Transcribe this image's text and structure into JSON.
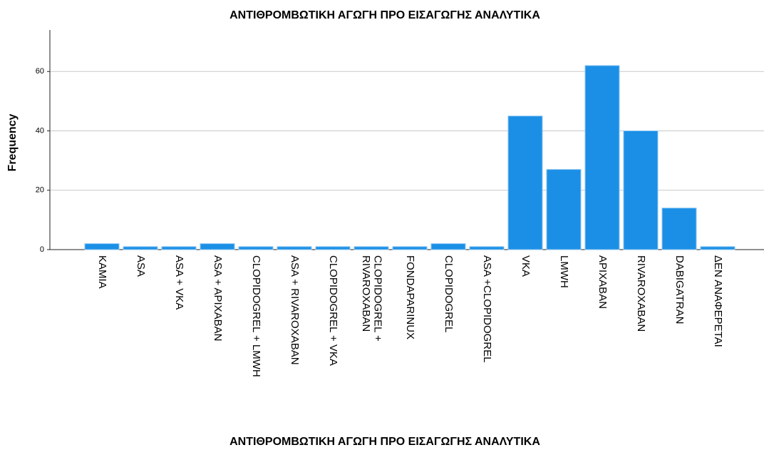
{
  "chart_data": {
    "type": "bar",
    "title": "ΑΝΤΙΘΡΟΜΒΩΤΙΚΗ ΑΓΩΓΗ ΠΡΟ ΕΙΣΑΓΩΓΗΣ ΑΝΑΛΥΤΙΚΑ",
    "x_label": "ΑΝΤΙΘΡΟΜΒΩΤΙΚΗ ΑΓΩΓΗ ΠΡΟ ΕΙΣΑΓΩΓΗΣ ΑΝΑΛΥΤΙΚΑ",
    "y_label": "Frequency",
    "categories": [
      "ΚΑΜΙΑ",
      "ASA",
      "ASA + VKA",
      "ASA + APIXABAN",
      "CLOPIDOGREL + LMWH",
      "ASA + RIVAROXABAN",
      "CLOPIDOGREL + VKA",
      "CLOPIDOGREL + RIVAROXABAN",
      "FONDAPARINUX",
      "CLOPIDOGREL",
      "ASA +CLOPIDOGREL",
      "VKA",
      "LMWH",
      "APIXABAN",
      "RIVAROXABAN",
      "DABIGATRAN",
      "ΔΕΝ ΑΝΑΦΕΡΕΤΑΙ"
    ],
    "values": [
      2,
      1,
      1,
      2,
      1,
      1,
      1,
      1,
      1,
      2,
      1,
      45,
      27,
      62,
      40,
      14,
      1
    ],
    "color": "#1b8fe6",
    "ylim": [
      0,
      74
    ],
    "yticks": [
      0,
      20,
      40,
      60
    ],
    "grid": true
  }
}
